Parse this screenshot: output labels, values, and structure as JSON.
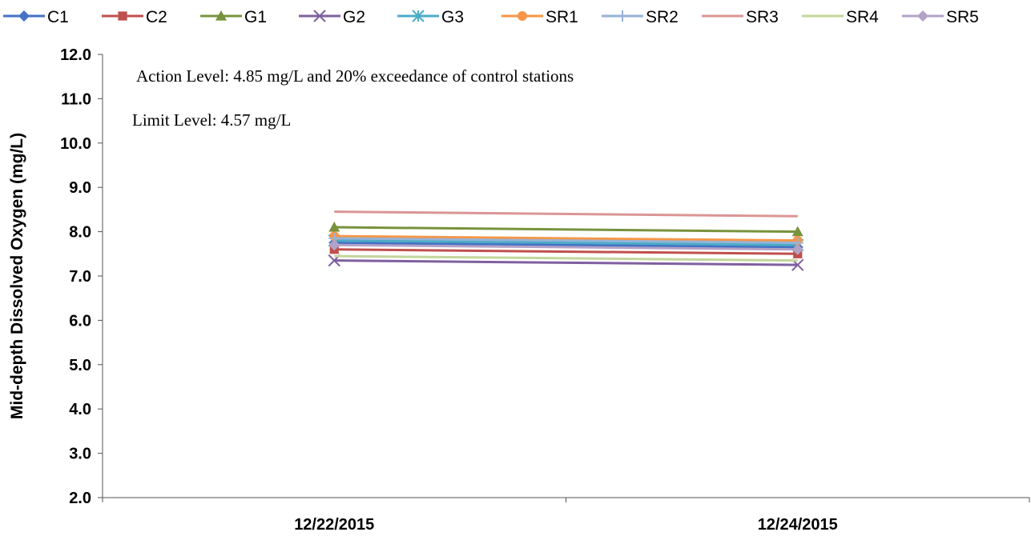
{
  "chart_data": {
    "type": "line",
    "ylabel": "Mid-depth Dissolved Oxygen (mg/L)",
    "xlabel": "",
    "ylim": [
      2.0,
      12.0
    ],
    "ytick_step": 1.0,
    "yticks": [
      "12.0",
      "11.0",
      "10.0",
      "9.0",
      "8.0",
      "7.0",
      "6.0",
      "5.0",
      "4.0",
      "3.0",
      "2.0"
    ],
    "categories": [
      "12/22/2015",
      "12/24/2015"
    ],
    "grid": false,
    "legend_position": "top",
    "annotations": [
      "Action Level: 4.85 mg/L and 20% exceedance of control stations",
      "Limit Level: 4.57 mg/L"
    ],
    "series": [
      {
        "name": "C1",
        "values": [
          7.75,
          7.65
        ],
        "color": "#4472C4",
        "marker": "diamond"
      },
      {
        "name": "C2",
        "values": [
          7.6,
          7.5
        ],
        "color": "#C0504D",
        "marker": "square"
      },
      {
        "name": "G1",
        "values": [
          8.1,
          8.0
        ],
        "color": "#77933C",
        "marker": "triangle"
      },
      {
        "name": "G2",
        "values": [
          7.35,
          7.25
        ],
        "color": "#7F5FA0",
        "marker": "x"
      },
      {
        "name": "G3",
        "values": [
          7.8,
          7.7
        ],
        "color": "#4BACC6",
        "marker": "asterisk"
      },
      {
        "name": "SR1",
        "values": [
          7.9,
          7.8
        ],
        "color": "#F79646",
        "marker": "circle"
      },
      {
        "name": "SR2",
        "values": [
          7.85,
          7.75
        ],
        "color": "#95B3D7",
        "marker": "plus"
      },
      {
        "name": "SR3",
        "values": [
          8.45,
          8.35
        ],
        "color": "#DA9694",
        "marker": "none"
      },
      {
        "name": "SR4",
        "values": [
          7.45,
          7.35
        ],
        "color": "#C3D69B",
        "marker": "none"
      },
      {
        "name": "SR5",
        "values": [
          7.7,
          7.6
        ],
        "color": "#B3A2C7",
        "marker": "diamond"
      }
    ]
  }
}
